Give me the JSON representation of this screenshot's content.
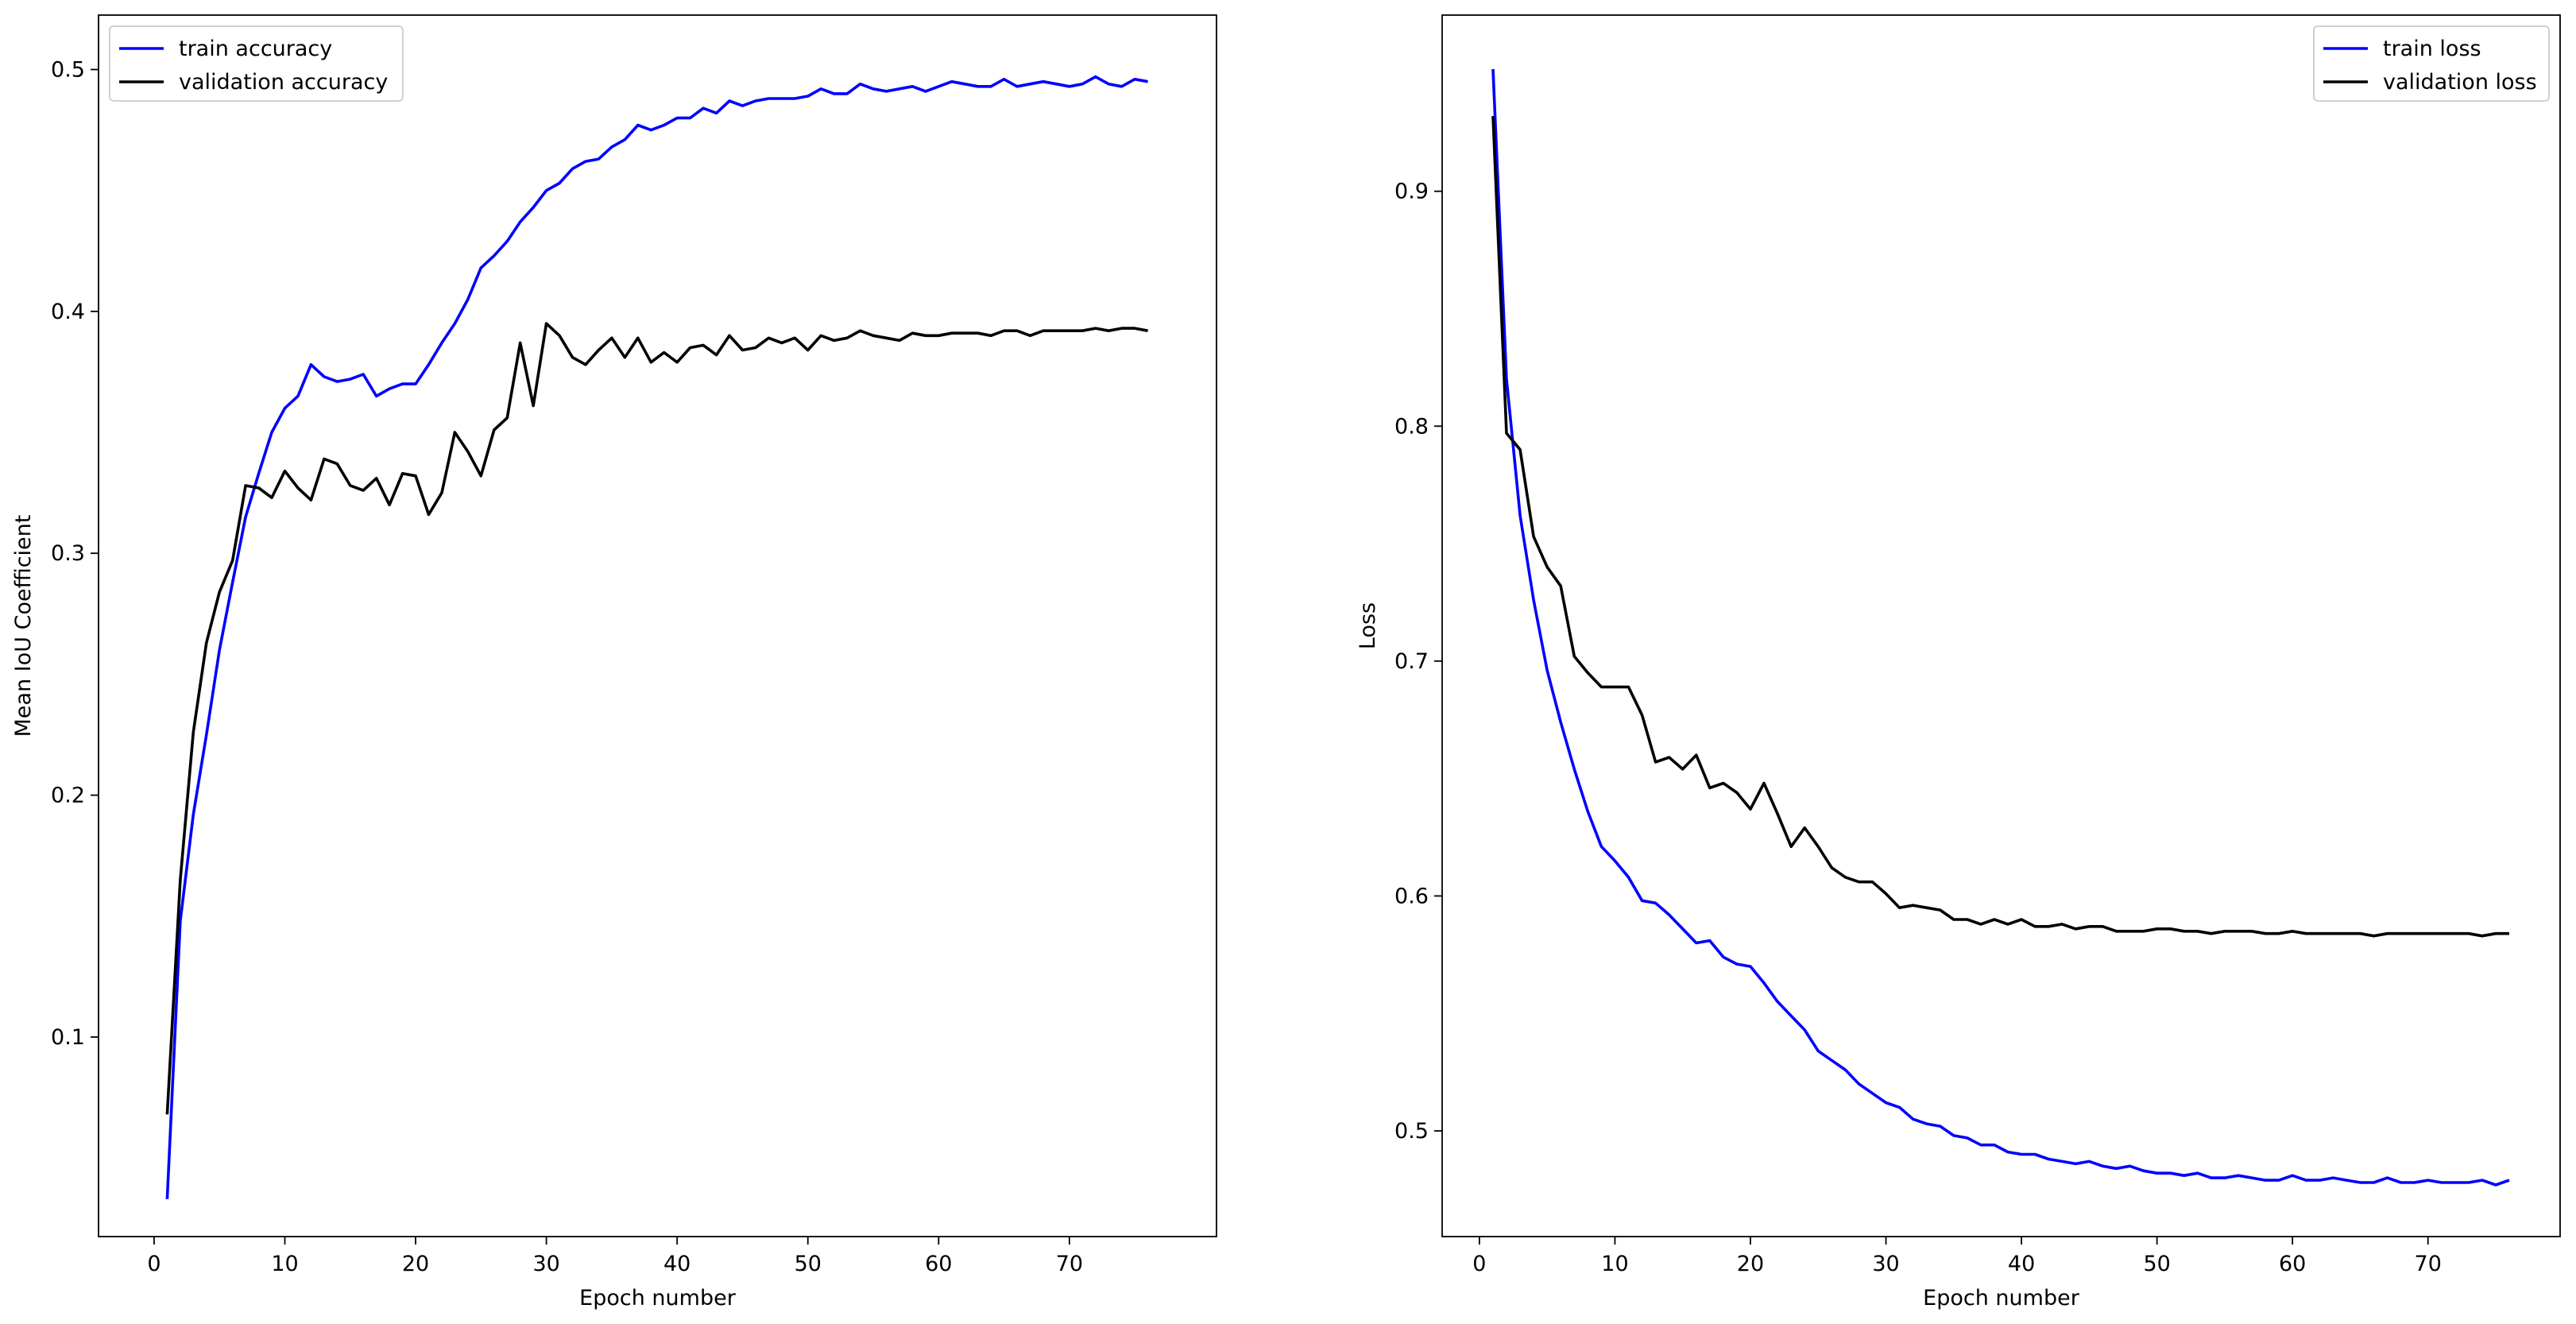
{
  "chart_data": [
    {
      "type": "line",
      "xlabel": "Epoch number",
      "ylabel": "Mean IoU Coefficient",
      "xlim": [
        -4.25,
        81.25
      ],
      "ylim": [
        0.0175,
        0.5225
      ],
      "xticks": [
        0,
        10,
        20,
        30,
        40,
        50,
        60,
        70
      ],
      "yticks": [
        0.1,
        0.2,
        0.3,
        0.4,
        0.5
      ],
      "legend_position": "top-left",
      "grid": false,
      "series": [
        {
          "name": "train accuracy",
          "color": "#0000ff",
          "x": [
            1,
            2,
            3,
            4,
            5,
            6,
            7,
            8,
            9,
            10,
            11,
            12,
            13,
            14,
            15,
            16,
            17,
            18,
            19,
            20,
            21,
            22,
            23,
            24,
            25,
            26,
            27,
            28,
            29,
            30,
            31,
            32,
            33,
            34,
            35,
            36,
            37,
            38,
            39,
            40,
            41,
            42,
            43,
            44,
            45,
            46,
            47,
            48,
            49,
            50,
            51,
            52,
            53,
            54,
            55,
            56,
            57,
            58,
            59,
            60,
            61,
            62,
            63,
            64,
            65,
            66,
            67,
            68,
            69,
            70,
            71,
            72,
            73,
            74,
            75,
            76
          ],
          "values": [
            0.033,
            0.148,
            0.192,
            0.225,
            0.26,
            0.288,
            0.315,
            0.333,
            0.35,
            0.36,
            0.365,
            0.378,
            0.373,
            0.371,
            0.372,
            0.374,
            0.365,
            0.368,
            0.37,
            0.37,
            0.378,
            0.387,
            0.395,
            0.405,
            0.418,
            0.423,
            0.429,
            0.437,
            0.443,
            0.45,
            0.453,
            0.459,
            0.462,
            0.463,
            0.468,
            0.471,
            0.477,
            0.475,
            0.477,
            0.48,
            0.48,
            0.484,
            0.482,
            0.487,
            0.485,
            0.487,
            0.488,
            0.488,
            0.488,
            0.489,
            0.492,
            0.49,
            0.49,
            0.494,
            0.492,
            0.491,
            0.492,
            0.493,
            0.491,
            0.493,
            0.495,
            0.494,
            0.493,
            0.493,
            0.496,
            0.493,
            0.494,
            0.495,
            0.494,
            0.493,
            0.494,
            0.497,
            0.494,
            0.493,
            0.496,
            0.495
          ]
        },
        {
          "name": "validation accuracy",
          "color": "#000000",
          "x": [
            1,
            2,
            3,
            4,
            5,
            6,
            7,
            8,
            9,
            10,
            11,
            12,
            13,
            14,
            15,
            16,
            17,
            18,
            19,
            20,
            21,
            22,
            23,
            24,
            25,
            26,
            27,
            28,
            29,
            30,
            31,
            32,
            33,
            34,
            35,
            36,
            37,
            38,
            39,
            40,
            41,
            42,
            43,
            44,
            45,
            46,
            47,
            48,
            49,
            50,
            51,
            52,
            53,
            54,
            55,
            56,
            57,
            58,
            59,
            60,
            61,
            62,
            63,
            64,
            65,
            66,
            67,
            68,
            69,
            70,
            71,
            72,
            73,
            74,
            75,
            76
          ],
          "values": [
            0.068,
            0.165,
            0.226,
            0.263,
            0.284,
            0.297,
            0.328,
            0.327,
            0.323,
            0.334,
            0.327,
            0.322,
            0.339,
            0.337,
            0.328,
            0.326,
            0.331,
            0.32,
            0.333,
            0.332,
            0.316,
            0.325,
            0.35,
            0.342,
            0.332,
            0.351,
            0.356,
            0.387,
            0.361,
            0.395,
            0.39,
            0.381,
            0.378,
            0.384,
            0.389,
            0.381,
            0.389,
            0.379,
            0.383,
            0.379,
            0.385,
            0.386,
            0.382,
            0.39,
            0.384,
            0.385,
            0.389,
            0.387,
            0.389,
            0.384,
            0.39,
            0.388,
            0.389,
            0.392,
            0.39,
            0.389,
            0.388,
            0.391,
            0.39,
            0.39,
            0.391,
            0.391,
            0.391,
            0.39,
            0.392,
            0.392,
            0.39,
            0.392,
            0.392,
            0.392,
            0.392,
            0.393,
            0.392,
            0.393,
            0.393,
            0.392
          ]
        }
      ]
    },
    {
      "type": "line",
      "xlabel": "Epoch number",
      "ylabel": "Loss",
      "xlim": [
        -2.75,
        79.75
      ],
      "ylim": [
        0.455,
        0.975
      ],
      "xticks": [
        0,
        10,
        20,
        30,
        40,
        50,
        60,
        70
      ],
      "yticks": [
        0.5,
        0.6,
        0.7,
        0.8,
        0.9
      ],
      "legend_position": "top-right",
      "grid": false,
      "series": [
        {
          "name": "train loss",
          "color": "#0000ff",
          "x": [
            1,
            2,
            3,
            4,
            5,
            6,
            7,
            8,
            9,
            10,
            11,
            12,
            13,
            14,
            15,
            16,
            17,
            18,
            19,
            20,
            21,
            22,
            23,
            24,
            25,
            26,
            27,
            28,
            29,
            30,
            31,
            32,
            33,
            34,
            35,
            36,
            37,
            38,
            39,
            40,
            41,
            42,
            43,
            44,
            45,
            46,
            47,
            48,
            49,
            50,
            51,
            52,
            53,
            54,
            55,
            56,
            57,
            58,
            59,
            60,
            61,
            62,
            63,
            64,
            65,
            66,
            67,
            68,
            69,
            70,
            71,
            72,
            73,
            74,
            75,
            76
          ],
          "values": [
            0.952,
            0.82,
            0.762,
            0.726,
            0.696,
            0.674,
            0.654,
            0.636,
            0.621,
            0.615,
            0.608,
            0.598,
            0.597,
            0.592,
            0.586,
            0.58,
            0.581,
            0.574,
            0.571,
            0.57,
            0.563,
            0.555,
            0.549,
            0.543,
            0.534,
            0.53,
            0.526,
            0.52,
            0.516,
            0.512,
            0.51,
            0.505,
            0.503,
            0.502,
            0.498,
            0.497,
            0.494,
            0.494,
            0.491,
            0.49,
            0.49,
            0.488,
            0.487,
            0.486,
            0.487,
            0.485,
            0.484,
            0.485,
            0.483,
            0.482,
            0.482,
            0.481,
            0.482,
            0.48,
            0.48,
            0.481,
            0.48,
            0.479,
            0.479,
            0.481,
            0.479,
            0.479,
            0.48,
            0.479,
            0.478,
            0.478,
            0.48,
            0.478,
            0.478,
            0.479,
            0.478,
            0.478,
            0.478,
            0.479,
            0.477,
            0.479
          ]
        },
        {
          "name": "validation loss",
          "color": "#000000",
          "x": [
            1,
            2,
            3,
            4,
            5,
            6,
            7,
            8,
            9,
            10,
            11,
            12,
            13,
            14,
            15,
            16,
            17,
            18,
            19,
            20,
            21,
            22,
            23,
            24,
            25,
            26,
            27,
            28,
            29,
            30,
            31,
            32,
            33,
            34,
            35,
            36,
            37,
            38,
            39,
            40,
            41,
            42,
            43,
            44,
            45,
            46,
            47,
            48,
            49,
            50,
            51,
            52,
            53,
            54,
            55,
            56,
            57,
            58,
            59,
            60,
            61,
            62,
            63,
            64,
            65,
            66,
            67,
            68,
            69,
            70,
            71,
            72,
            73,
            74,
            75,
            76
          ],
          "values": [
            0.932,
            0.797,
            0.79,
            0.753,
            0.74,
            0.732,
            0.702,
            0.695,
            0.689,
            0.689,
            0.689,
            0.677,
            0.657,
            0.659,
            0.654,
            0.66,
            0.646,
            0.648,
            0.644,
            0.637,
            0.648,
            0.635,
            0.621,
            0.629,
            0.621,
            0.612,
            0.608,
            0.606,
            0.606,
            0.601,
            0.595,
            0.596,
            0.595,
            0.594,
            0.59,
            0.59,
            0.588,
            0.59,
            0.588,
            0.59,
            0.587,
            0.587,
            0.588,
            0.586,
            0.587,
            0.587,
            0.585,
            0.585,
            0.585,
            0.586,
            0.586,
            0.585,
            0.585,
            0.584,
            0.585,
            0.585,
            0.585,
            0.584,
            0.584,
            0.585,
            0.584,
            0.584,
            0.584,
            0.584,
            0.584,
            0.583,
            0.584,
            0.584,
            0.584,
            0.584,
            0.584,
            0.584,
            0.584,
            0.583,
            0.584,
            0.584
          ]
        }
      ]
    }
  ]
}
